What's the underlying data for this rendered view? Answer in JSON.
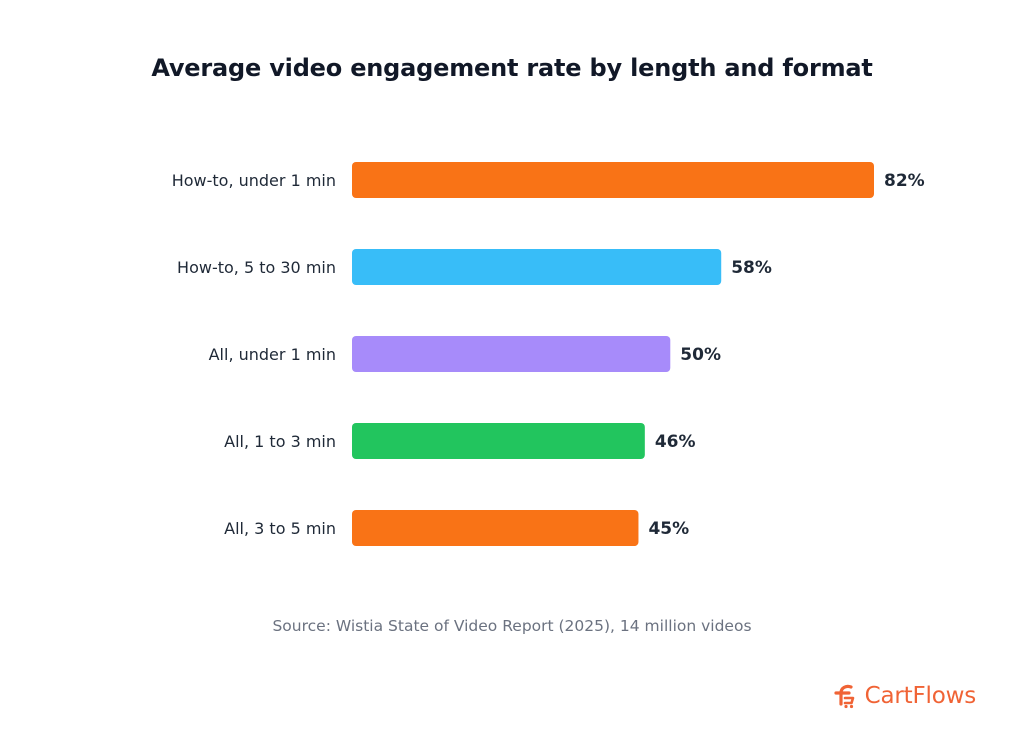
{
  "title": "Average video engagement rate by length and format",
  "source": "Source: Wistia State of Video Report (2025), 14 million videos",
  "brand": {
    "name": "CartFlows",
    "color": "#f06335",
    "icon": "cartflows-logo-icon"
  },
  "chart_data": {
    "type": "bar",
    "orientation": "horizontal",
    "categories": [
      "How-to, under 1 min",
      "How-to, 5 to 30 min",
      "All, under 1 min",
      "All, 1 to 3 min",
      "All, 3 to 5 min"
    ],
    "values": [
      82,
      58,
      50,
      46,
      45
    ],
    "value_labels": [
      "82%",
      "58%",
      "50%",
      "46%",
      "45%"
    ],
    "colors": [
      "#f97316",
      "#38bdf8",
      "#a78bfa",
      "#22c55e",
      "#f97316"
    ],
    "unit": "%",
    "xlim": [
      0,
      82
    ],
    "grid": false,
    "legend": false
  }
}
